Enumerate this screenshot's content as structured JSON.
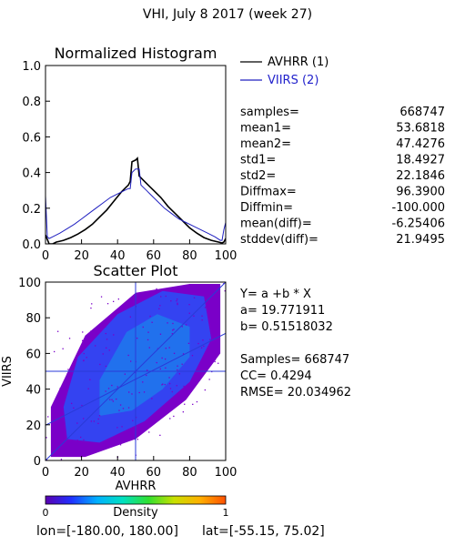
{
  "page_title": "VHI,  July 8 2017 (week 27)",
  "footer": {
    "lon_text": "lon=[-180.00, 180.00]",
    "lat_text": "lat=[-55.15, 75.02]"
  },
  "colors": {
    "avhrr_line": "#000000",
    "viirs_line": "#2020c0",
    "scatter_purple": "#7a00c8",
    "scatter_blue": "#1e5aff",
    "scatter_cyan": "#00c8e6",
    "crosshair": "#2a3ad8",
    "label_blue": "#2222cc"
  },
  "stats": [
    {
      "key": "samples=",
      "value": "668747"
    },
    {
      "key": "mean1=",
      "value": "53.6818"
    },
    {
      "key": "mean2=",
      "value": "47.4276"
    },
    {
      "key": "std1=",
      "value": "18.4927"
    },
    {
      "key": "std2=",
      "value": "22.1846"
    },
    {
      "key": "Diffmax=",
      "value": "96.3900"
    },
    {
      "key": "Diffmin=",
      "value": "-100.000"
    },
    {
      "key": "mean(diff)=",
      "value": "-6.25406"
    },
    {
      "key": "stddev(diff)=",
      "value": "21.9495"
    }
  ],
  "regression": {
    "equation": "Y= a +b * X",
    "a_text": "a= 19.771911",
    "b_text": "b= 0.51518032",
    "samples_text": "Samples= 668747",
    "cc_text": "CC=  0.4294",
    "rmse_text": "RMSE= 20.034962",
    "a": 19.771911,
    "b": 0.51518032
  },
  "chart_data": [
    {
      "type": "line",
      "title": "Normalized Histogram",
      "xlim": [
        0,
        100
      ],
      "ylim": [
        0,
        1.0
      ],
      "x_ticks": [
        0,
        20,
        40,
        60,
        80,
        100
      ],
      "y_ticks": [
        0.0,
        0.2,
        0.4,
        0.6,
        0.8,
        1.0
      ],
      "x_tick_labels": [
        "0",
        "20",
        "40",
        "60",
        "80",
        "100"
      ],
      "y_tick_labels": [
        "0.0",
        "0.2",
        "0.4",
        "0.6",
        "0.8",
        "1.0"
      ],
      "legend_position": "outside-top-right",
      "series": [
        {
          "name": "AVHRR (1)",
          "color": "#000000",
          "x": [
            0,
            2,
            4,
            6,
            8,
            10,
            14,
            18,
            22,
            26,
            30,
            34,
            38,
            42,
            44,
            46,
            47,
            48,
            50,
            51,
            52,
            54,
            56,
            58,
            60,
            64,
            68,
            72,
            76,
            80,
            84,
            88,
            92,
            96,
            98,
            99,
            100
          ],
          "y": [
            0.05,
            0.0,
            0.0,
            0.01,
            0.015,
            0.02,
            0.035,
            0.055,
            0.08,
            0.11,
            0.15,
            0.19,
            0.24,
            0.29,
            0.31,
            0.33,
            0.35,
            0.46,
            0.47,
            0.48,
            0.38,
            0.36,
            0.34,
            0.32,
            0.3,
            0.26,
            0.21,
            0.17,
            0.13,
            0.09,
            0.06,
            0.035,
            0.02,
            0.01,
            0.005,
            0.01,
            0.03
          ]
        },
        {
          "name": "VIIRS (2)",
          "color": "#2020c0",
          "x": [
            0,
            1,
            2,
            4,
            8,
            12,
            16,
            20,
            24,
            28,
            32,
            36,
            40,
            44,
            46,
            47,
            48,
            50,
            52,
            53,
            54,
            56,
            58,
            62,
            66,
            70,
            74,
            78,
            82,
            86,
            90,
            94,
            97,
            98,
            99,
            100
          ],
          "y": [
            0.27,
            0.04,
            0.03,
            0.04,
            0.06,
            0.085,
            0.11,
            0.14,
            0.17,
            0.2,
            0.23,
            0.26,
            0.28,
            0.3,
            0.31,
            0.31,
            0.4,
            0.42,
            0.42,
            0.33,
            0.32,
            0.3,
            0.28,
            0.24,
            0.2,
            0.17,
            0.14,
            0.12,
            0.1,
            0.08,
            0.06,
            0.04,
            0.02,
            0.02,
            0.08,
            0.12
          ]
        }
      ]
    },
    {
      "type": "scatter",
      "title": "Scatter Plot",
      "xlabel": "AVHRR",
      "ylabel": "VIIRS",
      "xlim": [
        0,
        100
      ],
      "ylim": [
        0,
        100
      ],
      "x_ticks": [
        0,
        20,
        40,
        60,
        80,
        100
      ],
      "y_ticks": [
        0,
        20,
        40,
        60,
        80,
        100
      ],
      "x_tick_labels": [
        "0",
        "20",
        "40",
        "60",
        "80",
        "100"
      ],
      "y_tick_labels": [
        "0",
        "20",
        "40",
        "60",
        "80",
        "100"
      ],
      "density_regions": [
        {
          "level": "low",
          "x": [
            3,
            22,
            50,
            78,
            97,
            97,
            80,
            50,
            22,
            3
          ],
          "y": [
            2,
            2,
            12,
            34,
            60,
            99,
            99,
            94,
            70,
            30
          ]
        },
        {
          "level": "medium",
          "x": [
            12,
            30,
            55,
            80,
            92,
            88,
            65,
            40,
            18,
            10
          ],
          "y": [
            12,
            10,
            22,
            44,
            68,
            92,
            95,
            82,
            58,
            30
          ]
        },
        {
          "level": "high",
          "x": [
            30,
            48,
            65,
            80,
            80,
            62,
            45,
            30
          ],
          "y": [
            25,
            28,
            40,
            58,
            75,
            82,
            72,
            45
          ]
        }
      ],
      "reference_lines": [
        {
          "kind": "vertical",
          "x": 50
        },
        {
          "kind": "horizontal",
          "y": 50
        },
        {
          "kind": "diagonal",
          "x": [
            0,
            100
          ],
          "y": [
            0,
            100
          ]
        },
        {
          "kind": "regression",
          "x": [
            0,
            100
          ],
          "y": [
            19.77,
            71.29
          ]
        }
      ]
    },
    {
      "type": "colorbar",
      "label": "Density",
      "min_label": "0",
      "max_label": "1",
      "range": [
        0,
        1
      ],
      "colors": [
        "#5a00b0",
        "#2030ff",
        "#00b0ff",
        "#00e0c0",
        "#30e030",
        "#c8e000",
        "#ffb000",
        "#ff5000"
      ]
    }
  ]
}
